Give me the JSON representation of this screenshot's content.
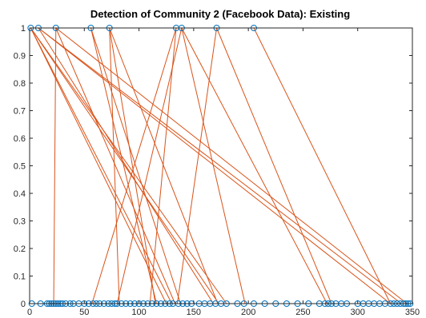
{
  "chart_data": {
    "type": "scatter",
    "title": "Detection of Community 2 (Facebook Data): Existing",
    "xlabel": "",
    "ylabel": "",
    "xlim": [
      0,
      350
    ],
    "ylim": [
      0,
      1
    ],
    "x_ticks": [
      "0",
      "50",
      "100",
      "150",
      "200",
      "250",
      "300",
      "350"
    ],
    "y_ticks": [
      "0",
      "0.1",
      "0.2",
      "0.3",
      "0.4",
      "0.5",
      "0.6",
      "0.7",
      "0.8",
      "0.9",
      "1"
    ],
    "grid": false,
    "legend": "none",
    "colors": {
      "nodes": "#0072bd",
      "edges": "#d95319"
    },
    "top_nodes_x": [
      1,
      8,
      24,
      56,
      73,
      134,
      139,
      171,
      205
    ],
    "bottom_nodes_x": [
      2,
      10,
      16,
      18,
      20,
      22,
      24,
      26,
      28,
      30,
      33,
      37,
      40,
      45,
      50,
      54,
      58,
      61,
      64,
      68,
      72,
      75,
      78,
      80,
      84,
      88,
      92,
      96,
      100,
      104,
      108,
      112,
      116,
      120,
      124,
      128,
      131,
      136,
      140,
      144,
      148,
      155,
      160,
      165,
      170,
      175,
      180,
      190,
      196,
      205,
      215,
      225,
      235,
      245,
      255,
      265,
      270,
      273,
      276,
      280,
      285,
      290,
      300,
      305,
      310,
      315,
      320,
      325,
      330,
      333,
      336,
      339,
      342,
      344,
      346,
      348
    ],
    "edges": [
      [
        1,
        1,
        125,
        0
      ],
      [
        1,
        1,
        130,
        0
      ],
      [
        1,
        1,
        173,
        0
      ],
      [
        1,
        1,
        180,
        0
      ],
      [
        8,
        1,
        330,
        0
      ],
      [
        8,
        1,
        340,
        0
      ],
      [
        8,
        1,
        168,
        0
      ],
      [
        24,
        1,
        22,
        0
      ],
      [
        24,
        1,
        133,
        0
      ],
      [
        24,
        1,
        345,
        0
      ],
      [
        56,
        1,
        116,
        0
      ],
      [
        56,
        1,
        138,
        0
      ],
      [
        73,
        1,
        82,
        0
      ],
      [
        73,
        1,
        115,
        0
      ],
      [
        73,
        1,
        172,
        0
      ],
      [
        134,
        1,
        57,
        0
      ],
      [
        134,
        1,
        110,
        0
      ],
      [
        139,
        1,
        80,
        0
      ],
      [
        139,
        1,
        197,
        0
      ],
      [
        139,
        1,
        272,
        0
      ],
      [
        171,
        1,
        135,
        0
      ],
      [
        171,
        1,
        276,
        0
      ],
      [
        205,
        1,
        330,
        0
      ]
    ]
  }
}
